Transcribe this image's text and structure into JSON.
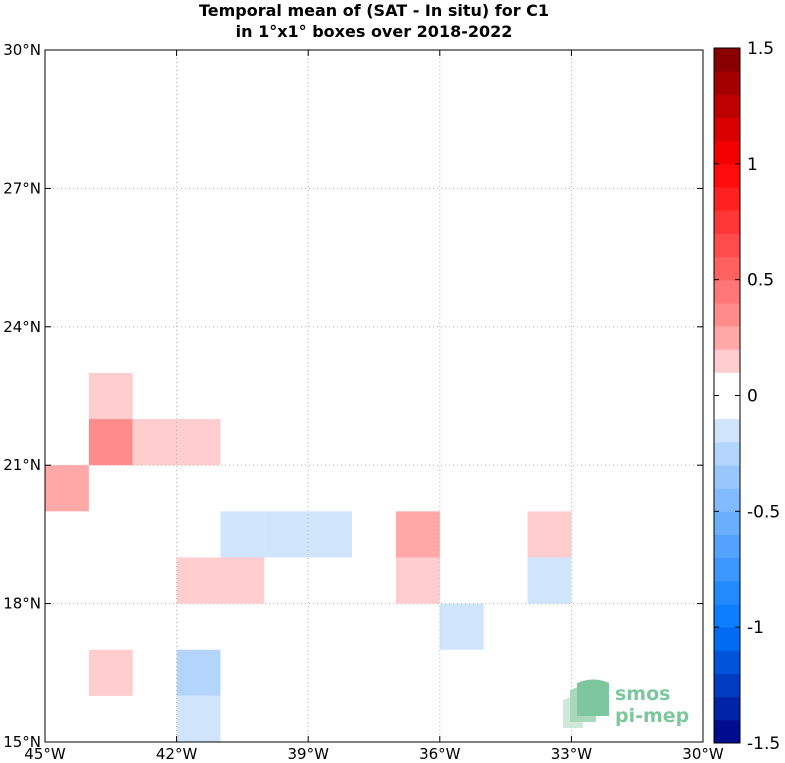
{
  "chart_data": {
    "type": "heatmap",
    "title_lines": [
      "Temporal mean of (SAT - In situ) for C1",
      "in 1°x1° boxes over 2018-2022"
    ],
    "x_range": [
      -45,
      -30
    ],
    "y_range": [
      15,
      30
    ],
    "x_ticks": [
      {
        "value": -45,
        "label": "45°W"
      },
      {
        "value": -42,
        "label": "42°W"
      },
      {
        "value": -39,
        "label": "39°W"
      },
      {
        "value": -36,
        "label": "36°W"
      },
      {
        "value": -33,
        "label": "33°W"
      },
      {
        "value": -30,
        "label": "30°W"
      }
    ],
    "y_ticks": [
      {
        "value": 15,
        "label": "15°N"
      },
      {
        "value": 18,
        "label": "18°N"
      },
      {
        "value": 21,
        "label": "21°N"
      },
      {
        "value": 24,
        "label": "24°N"
      },
      {
        "value": 27,
        "label": "27°N"
      },
      {
        "value": 30,
        "label": "30°N"
      }
    ],
    "grid": true,
    "cell_size_deg": 1,
    "cells": [
      {
        "lon": -44,
        "lat": 22,
        "value": 0.15
      },
      {
        "lon": -44,
        "lat": 21,
        "value": 0.35
      },
      {
        "lon": -43,
        "lat": 21,
        "value": 0.15
      },
      {
        "lon": -42,
        "lat": 21,
        "value": 0.15
      },
      {
        "lon": -45,
        "lat": 20,
        "value": 0.25
      },
      {
        "lon": -41,
        "lat": 19,
        "value": -0.15
      },
      {
        "lon": -40,
        "lat": 19,
        "value": -0.15
      },
      {
        "lon": -39,
        "lat": 19,
        "value": -0.15
      },
      {
        "lon": -37,
        "lat": 19,
        "value": 0.25
      },
      {
        "lon": -34,
        "lat": 19,
        "value": 0.15
      },
      {
        "lon": -42,
        "lat": 18,
        "value": 0.15
      },
      {
        "lon": -41,
        "lat": 18,
        "value": 0.15
      },
      {
        "lon": -37,
        "lat": 18,
        "value": 0.15
      },
      {
        "lon": -34,
        "lat": 18,
        "value": -0.15
      },
      {
        "lon": -36,
        "lat": 17,
        "value": -0.15
      },
      {
        "lon": -44,
        "lat": 16,
        "value": 0.15
      },
      {
        "lon": -42,
        "lat": 16,
        "value": -0.25
      },
      {
        "lon": -42,
        "lat": 15,
        "value": -0.15
      }
    ],
    "colorbar": {
      "range": [
        -1.5,
        1.5
      ],
      "step": 0.1,
      "ticks": [
        {
          "value": 1.5,
          "label": "1.5"
        },
        {
          "value": 1,
          "label": "1"
        },
        {
          "value": 0.5,
          "label": "0.5"
        },
        {
          "value": 0,
          "label": "0"
        },
        {
          "value": -0.5,
          "label": "-0.5"
        },
        {
          "value": -1,
          "label": "-1"
        },
        {
          "value": -1.5,
          "label": "-1.5"
        }
      ]
    }
  },
  "logo": {
    "line1": "smos",
    "line2": "pi-mep"
  }
}
